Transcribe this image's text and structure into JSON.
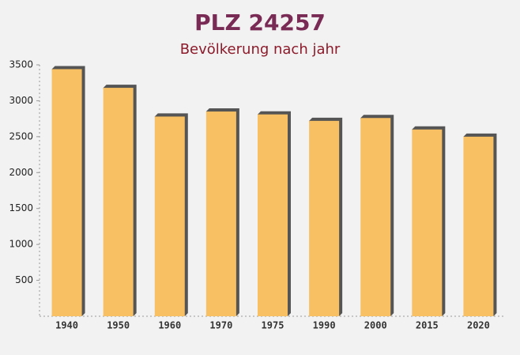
{
  "chart_data": {
    "type": "bar",
    "title": "PLZ 24257",
    "subtitle": "Bevölkerung nach jahr",
    "categories": [
      "1940",
      "1950",
      "1960",
      "1970",
      "1975",
      "1990",
      "2000",
      "2015",
      "2020"
    ],
    "values": [
      3440,
      3180,
      2780,
      2850,
      2810,
      2720,
      2760,
      2600,
      2500
    ],
    "color": "#f8c062",
    "ylim": [
      0,
      3500
    ],
    "yticks": [
      500,
      1000,
      1500,
      2000,
      2500,
      3000,
      3500
    ]
  }
}
